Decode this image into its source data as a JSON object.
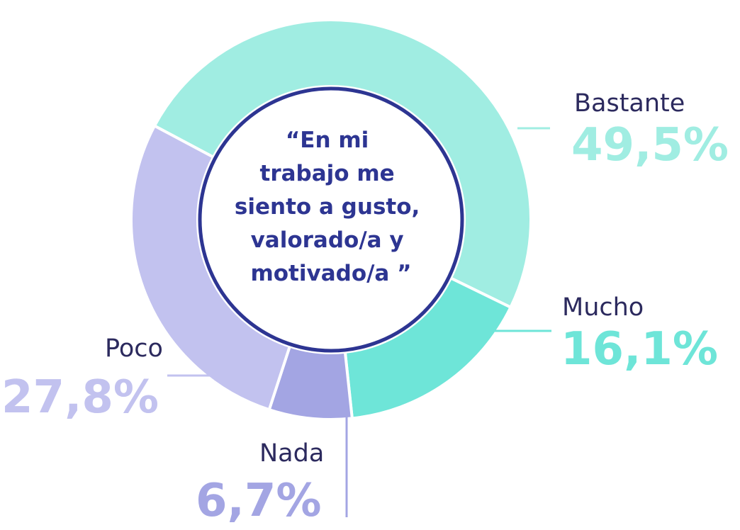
{
  "chart_data": {
    "type": "pie",
    "title": "“En mi trabajo me siento a gusto, valorado/a y motivado/a ”",
    "title_lines": [
      "“En mi",
      "trabajo me",
      "siento a gusto,",
      "valorado/a  y",
      "motivado/a ”"
    ],
    "categories": [
      "Bastante",
      "Mucho",
      "Nada",
      "Poco"
    ],
    "values": [
      49.5,
      16.1,
      6.7,
      27.8
    ],
    "value_labels": [
      "49,5%",
      "16,1%",
      "6,7%",
      "27,8%"
    ],
    "colors": [
      "#a0ede2",
      "#6ee5d8",
      "#a3a5e3",
      "#c2c2ef"
    ],
    "label_colors": [
      "#a0ede2",
      "#6ee5d8",
      "#a3a5e3",
      "#c2c2ef"
    ],
    "center_ring_color": "#2d3592",
    "legend": "none"
  }
}
